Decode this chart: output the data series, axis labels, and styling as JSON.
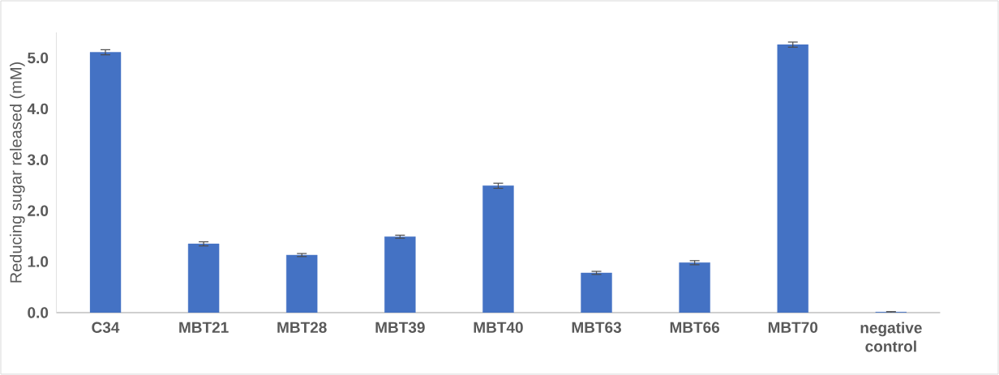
{
  "chart_data": {
    "type": "bar",
    "ylabel": "Reducing sugar released (mM)",
    "categories": [
      "C34",
      "MBT21",
      "MBT28",
      "MBT39",
      "MBT40",
      "MBT63",
      "MBT66",
      "MBT70",
      "negative control"
    ],
    "values": [
      5.11,
      1.35,
      1.13,
      1.49,
      2.49,
      0.78,
      0.98,
      5.26,
      0.01
    ],
    "errors": [
      0.05,
      0.04,
      0.03,
      0.03,
      0.05,
      0.03,
      0.04,
      0.05,
      0.01
    ],
    "color": "#4472c4",
    "ylim": [
      0,
      5.5
    ],
    "yticks": [
      {
        "value": 0,
        "label": "0.0"
      },
      {
        "value": 1,
        "label": "1.0"
      },
      {
        "value": 2,
        "label": "2.0"
      },
      {
        "value": 3,
        "label": "3.0"
      },
      {
        "value": 4,
        "label": "4.0"
      },
      {
        "value": 5,
        "label": "5.0"
      }
    ],
    "grid": false
  }
}
